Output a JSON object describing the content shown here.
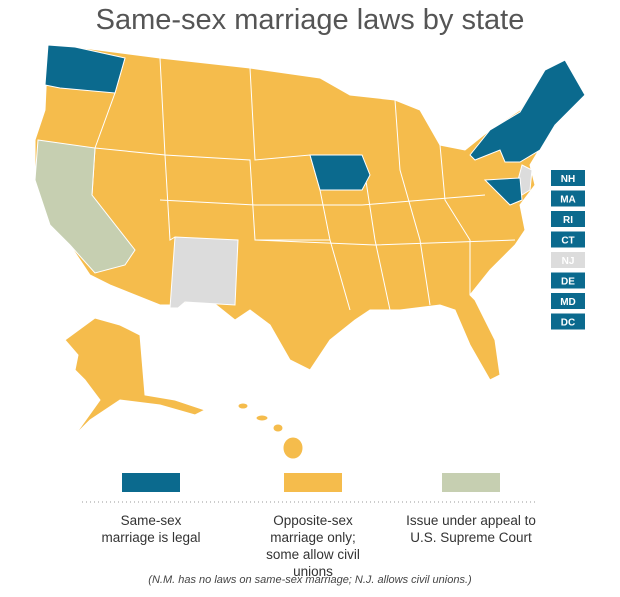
{
  "title": "Same-sex marriage laws by state",
  "legend": [
    {
      "label": "Same-sex marriage is legal",
      "color": "#0b6a8e"
    },
    {
      "label": "Opposite-sex marriage only; some allow civil unions",
      "color": "#f5bc4c"
    },
    {
      "label": "Issue under appeal to U.S. Supreme Court",
      "color": "#c6cfb1"
    }
  ],
  "state_labels": [
    {
      "label": "NH",
      "color": "#0b6a8e"
    },
    {
      "label": "MA",
      "color": "#0b6a8e"
    },
    {
      "label": "RI",
      "color": "#0b6a8e"
    },
    {
      "label": "CT",
      "color": "#0b6a8e"
    },
    {
      "label": "NJ",
      "color": "#dcdcdc"
    },
    {
      "label": "DE",
      "color": "#0b6a8e"
    },
    {
      "label": "MD",
      "color": "#0b6a8e"
    },
    {
      "label": "DC",
      "color": "#0b6a8e"
    }
  ],
  "other_color": "#dcdcdc",
  "note": "(N.M. has no laws on same-sex marriage; N.J. allows civil unions.)"
}
